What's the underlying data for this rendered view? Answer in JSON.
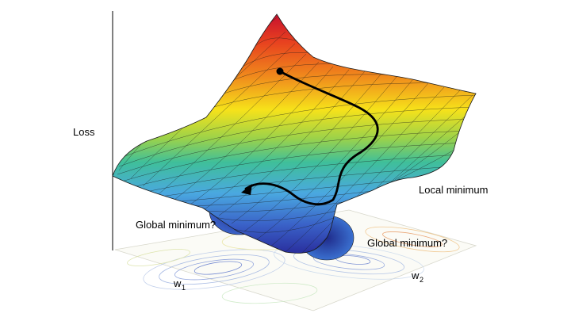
{
  "axes": {
    "z_label": "Loss",
    "x_label_base": "w",
    "x_label_sub": "1",
    "y_label_base": "w",
    "y_label_sub": "2"
  },
  "annotations": {
    "local_minimum": "Local minimum",
    "global_minimum_left": "Global minimum?",
    "global_minimum_right": "Global minimum?"
  },
  "colors": {
    "surface_top": "#c8102e",
    "surface_high": "#f08a1c",
    "surface_mid_high": "#f6e21a",
    "surface_mid": "#9bd24a",
    "surface_mid_low": "#3fbf9a",
    "surface_low": "#4aa8e0",
    "surface_bottom": "#2a3fae",
    "mesh_line": "#1a1a1a",
    "path": "#000000"
  }
}
